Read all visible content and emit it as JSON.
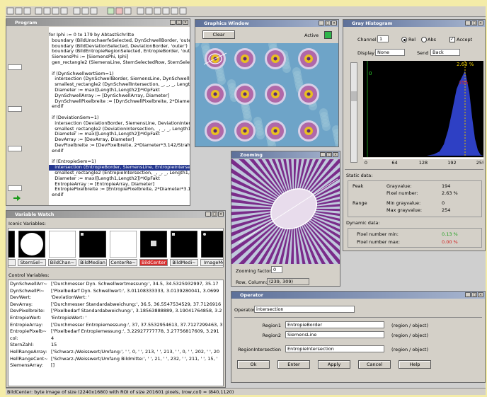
{
  "program": {
    "title": "Program",
    "blocks": [
      [
        "for Iphi := 0 to 179 by AbtastSchritte",
        "  boundary (BildUnschaerfeSelected, DynSchwellBorder, 'outer')",
        "  boundary (BildDeviationSelected, DeviationBorder, 'outer')",
        "  boundary (BildEntropieRegionSelected, EntropieBorder, 'outer')",
        "  SiemensPhi := [SiemensPhi, Iphi]",
        "  gen_rectangle2 (SiemensLine, SternSelectedRow, SternSelectedCol"
      ],
      [
        "  if (DynSchwellwertSem=1)",
        "    intersection (DynSchwellBorder, SiemensLine, DynSchwellInte",
        "    smallest_rectangle2 (DynSchwellIntersection, _, _, _, Length1, ",
        "    Diameter := max([Length1,Length2])*KlpFakt",
        "    DynSchwellArray := [DynSchwellArray, Diameter]",
        "    DynSchwellPixelbreite := [DynSchwellPixelbreite, 2*Diameter*3.",
        "  endif"
      ],
      [
        "  if (DeviationSem=1)",
        "    intersection (DeviationBorder, SiemensLine, DeviationIntersecti",
        "    smallest_rectangle2 (DeviationIntersection, _, _, _, Length1, Len",
        "    Diameter := max([Length1,Length2])*KlpFakt",
        "    DevArray := [DevArray, Diameter]",
        "    DevPixelbreite := [DevPixelbreite, 2*Diameter*3.142/Strahlenzah",
        "  endif"
      ],
      [
        "  if (EntropieSem=1)",
        "    intersection (EntropieBorder, SiemensLine, EntropieIntersection",
        "    smallest_rectangle2 (EntropieIntersection, _, _, _, Length1, Len",
        "    Diameter := max([Length1,Length2])*KlpFakt",
        "    EntropieArray := [EntropieArray, Diameter]",
        "    EntropiePixelbreite := [EntropiePixelbreite, 2*Diameter*3.142/Strah",
        "  endif"
      ]
    ]
  },
  "graphics_window": {
    "title": "Graphics Window",
    "clear": "Clear",
    "active": "Active"
  },
  "histogram": {
    "title": "Gray Histogram",
    "channel_label": "Channel",
    "channel": "1",
    "rel": "Rel",
    "abs": "Abs",
    "accept": "Accept",
    "display_label": "Display",
    "display": "None",
    "send_label": "Send",
    "send": "Back",
    "peak_label": "2.63 %",
    "low_label": "0",
    "high_label": "255",
    "axis_labels": [
      "0",
      "64",
      "128",
      "192",
      "255"
    ],
    "static_title": "Static data:",
    "static": [
      {
        "group": "Peak",
        "items": [
          [
            "Grayvalue:",
            "194"
          ],
          [
            "Pixel number:",
            "2.63 %"
          ]
        ]
      },
      {
        "group": "Range",
        "items": [
          [
            "Min grayvalue:",
            "0"
          ],
          [
            "Max grayvalue:",
            "254"
          ]
        ]
      }
    ],
    "dynamic_title": "Dynamic data:",
    "dynamic": [
      [
        "Pixel number min:",
        "0.13 %"
      ],
      [
        "Pixel number max:",
        "0.00 %"
      ]
    ]
  },
  "zooming": {
    "title": "Zooming",
    "factor_label": "Zooming factor",
    "factor": "0",
    "rowcol_label": "Row, Column:",
    "rowcol": "(239, 309)"
  },
  "variable_watch": {
    "title": "Variable Watch",
    "iconic_label": "Iconic Variables:",
    "iconic": [
      "m",
      "SternSel~",
      "BildChan~",
      "BildMedian",
      "CenterRe~",
      "BildCenter",
      "BildMedi~",
      "ImageMe"
    ],
    "control_label": "Control Variables:",
    "control": [
      [
        "DynSchwellArr~",
        "['Durchmesser Dyn. Schwellwertmessung:', 34.5, 34.5325932997, 35.17"
      ],
      [
        "DynSchwellPi~",
        "['Pixelbedarf Dyn. Schwellwert:', 3.01108333333, 3.0139280041, 3.0699"
      ],
      [
        "DevWert:",
        "'DeviationWert: '"
      ],
      [
        "DevArray:",
        "['Durchmesser Standardabweichung:', 36.5, 36.5547534529, 37.7126916"
      ],
      [
        "DevPixelbreite:",
        "['Pixelbedarf Standardabweichung:', 3.18563888889, 3.19041764858, 3.2"
      ],
      [
        "EntropieWert:",
        "'EntropieWert: '"
      ],
      [
        "EntropieArray:",
        "['Durchmesser Entropiemessung:', 37, 37.5532954613, 37.7127299463, 3"
      ],
      [
        "EntropiePixelb~",
        "['Pixelbedarf Entropiemessung:', 3.22927777778, 3.27756817609, 3.291"
      ],
      [
        "col:",
        "4"
      ],
      [
        "SternZahl:",
        "15"
      ],
      [
        "HellRangeArray:",
        "['Schwarz-/Weisswert/Umfang:', ' ', 0, ' ', 213, ' ', 213, ' ', 0, ' ', 202, ' ', 20"
      ],
      [
        "HellRangeCent~",
        "['Schwarz-/Weisswert/Umfang Bildmitte:', ' ', 21, ' ', 232, ' ', 211, ' ', 15, ' "
      ],
      [
        "SiemensArray:",
        "[]"
      ]
    ]
  },
  "operator": {
    "title": "Operator",
    "operator_label": "Operator:",
    "operator": "intersection",
    "params": [
      [
        "Region1",
        "EntropieBorder",
        "(region / object)"
      ],
      [
        "Region2",
        "SiemensLine",
        "(region / object)"
      ],
      [
        "RegionIntersection",
        "EntropieIntersection",
        "(region / object)"
      ]
    ],
    "buttons": [
      "Ok",
      "Enter",
      "Apply",
      "Cancel",
      "Help"
    ]
  },
  "status_bar": "BildCenter: byte image of size (2240x1680) with ROI of size 201601 pixels, (row,col) = (840,1120)"
}
